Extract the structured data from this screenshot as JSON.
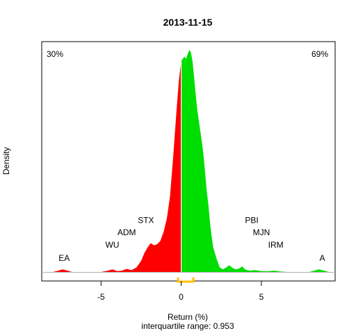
{
  "chart_data": {
    "type": "area",
    "title": "2013-11-15",
    "xlabel": "Return (%)",
    "ylabel": "Density",
    "subtitle": "interquartile range: 0.953",
    "xlim": [
      -8.7,
      9.6
    ],
    "ylim": [
      0,
      1.0
    ],
    "xticks": [
      -5,
      0,
      5
    ],
    "xtick_labels": [
      "-5",
      "0",
      "5"
    ],
    "pct_negative": "30%",
    "pct_positive": "69%",
    "colors": {
      "negative": "#ff0000",
      "positive": "#00dd00",
      "iqr": "#ffc000",
      "axis": "#000000",
      "baseline": "#b0b0b0"
    },
    "iqr": [
      -0.2,
      0.75
    ],
    "density": {
      "x": [
        -8.0,
        -7.7,
        -7.4,
        -7.1,
        -6.8,
        -6.5,
        -6.0,
        -5.5,
        -5.0,
        -4.6,
        -4.3,
        -4.0,
        -3.7,
        -3.4,
        -3.1,
        -2.8,
        -2.5,
        -2.3,
        -2.1,
        -1.9,
        -1.7,
        -1.5,
        -1.3,
        -1.1,
        -0.9,
        -0.7,
        -0.5,
        -0.3,
        -0.15,
        0.0,
        0.1,
        0.2,
        0.3,
        0.4,
        0.5,
        0.6,
        0.7,
        0.8,
        0.9,
        1.0,
        1.1,
        1.2,
        1.3,
        1.4,
        1.5,
        1.6,
        1.7,
        1.8,
        1.9,
        2.0,
        2.2,
        2.4,
        2.6,
        2.8,
        3.0,
        3.2,
        3.4,
        3.6,
        3.8,
        4.0,
        4.3,
        4.6,
        5.0,
        5.4,
        5.8,
        6.2,
        6.6,
        7.0,
        7.5,
        8.0,
        8.3,
        8.6,
        8.9,
        9.2
      ],
      "y": [
        0.0,
        0.005,
        0.012,
        0.006,
        0.0,
        0.0,
        0.0,
        0.0,
        0.0,
        0.005,
        0.012,
        0.004,
        0.006,
        0.014,
        0.008,
        0.02,
        0.05,
        0.085,
        0.11,
        0.13,
        0.12,
        0.125,
        0.14,
        0.18,
        0.24,
        0.34,
        0.52,
        0.72,
        0.86,
        0.95,
        0.96,
        0.97,
        0.96,
        0.98,
        1.0,
        0.99,
        0.95,
        0.88,
        0.8,
        0.73,
        0.68,
        0.63,
        0.58,
        0.52,
        0.44,
        0.36,
        0.3,
        0.22,
        0.16,
        0.11,
        0.06,
        0.02,
        0.012,
        0.02,
        0.03,
        0.018,
        0.012,
        0.015,
        0.025,
        0.01,
        0.006,
        0.008,
        0.004,
        0.003,
        0.006,
        0.002,
        0.0,
        0.0,
        0.0,
        0.0,
        0.006,
        0.012,
        0.006,
        0.0
      ]
    },
    "annotations": [
      {
        "label": "EA",
        "x": -7.3,
        "y": 0.05
      },
      {
        "label": "WU",
        "x": -4.3,
        "y": 0.11
      },
      {
        "label": "ADM",
        "x": -3.4,
        "y": 0.165
      },
      {
        "label": "STX",
        "x": -2.2,
        "y": 0.22
      },
      {
        "label": "PBI",
        "x": 4.4,
        "y": 0.22
      },
      {
        "label": "MJN",
        "x": 5.0,
        "y": 0.165
      },
      {
        "label": "IRM",
        "x": 5.9,
        "y": 0.11
      },
      {
        "label": "A",
        "x": 8.8,
        "y": 0.05
      }
    ]
  }
}
